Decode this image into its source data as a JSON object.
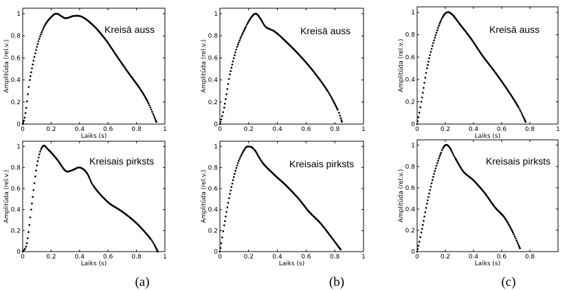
{
  "chart_data": [
    {
      "type": "scatter",
      "annotation": "Kreisā auss",
      "xlabel": "Laiks (s)",
      "ylabel": "Amplitūda (rel.v.)",
      "xlim": [
        0,
        1
      ],
      "ylim": [
        0,
        1.05
      ],
      "xticks": [
        "0",
        "0.2",
        "0.4",
        "0.6",
        "0.8",
        "1"
      ],
      "yticks": [
        "0",
        "0.2",
        "0.4",
        "0.6",
        "0.8",
        "1"
      ],
      "curve": [
        [
          0,
          0
        ],
        [
          0.02,
          0.1
        ],
        [
          0.05,
          0.4
        ],
        [
          0.1,
          0.7
        ],
        [
          0.15,
          0.88
        ],
        [
          0.2,
          0.97
        ],
        [
          0.24,
          1.0
        ],
        [
          0.3,
          0.96
        ],
        [
          0.36,
          0.98
        ],
        [
          0.42,
          0.97
        ],
        [
          0.5,
          0.89
        ],
        [
          0.58,
          0.77
        ],
        [
          0.66,
          0.62
        ],
        [
          0.74,
          0.47
        ],
        [
          0.82,
          0.33
        ],
        [
          0.88,
          0.2
        ],
        [
          0.94,
          0.02
        ]
      ]
    },
    {
      "type": "scatter",
      "annotation": "Kreisā auss",
      "xlabel": "",
      "ylabel": "Amplitūda (rel.v.)",
      "xlim": [
        0,
        1
      ],
      "ylim": [
        0,
        1.05
      ],
      "xticks": [
        "0",
        "0.2",
        "0.4",
        "0.6",
        "0.8",
        "1"
      ],
      "yticks": [
        "0",
        "0.2",
        "0.4",
        "0.6",
        "0.8",
        "1"
      ],
      "curve": [
        [
          0,
          0
        ],
        [
          0.03,
          0.15
        ],
        [
          0.07,
          0.45
        ],
        [
          0.12,
          0.7
        ],
        [
          0.18,
          0.88
        ],
        [
          0.22,
          0.97
        ],
        [
          0.25,
          1.0
        ],
        [
          0.28,
          0.96
        ],
        [
          0.32,
          0.88
        ],
        [
          0.38,
          0.84
        ],
        [
          0.45,
          0.76
        ],
        [
          0.55,
          0.63
        ],
        [
          0.65,
          0.48
        ],
        [
          0.75,
          0.3
        ],
        [
          0.82,
          0.13
        ],
        [
          0.85,
          0.02
        ]
      ]
    },
    {
      "type": "scatter",
      "annotation": "Kreisā auss",
      "xlabel": "Laiks (s)",
      "ylabel": "Amplitūda (rel.v.)",
      "xlim": [
        0,
        1
      ],
      "ylim": [
        0,
        1.05
      ],
      "xticks": [
        "0",
        "0.2",
        "0.4",
        "0.6",
        "0.8",
        "1"
      ],
      "yticks": [
        "0",
        "0.2",
        "0.4",
        "0.6",
        "0.8",
        "1"
      ],
      "curve": [
        [
          0,
          0
        ],
        [
          0.03,
          0.2
        ],
        [
          0.07,
          0.5
        ],
        [
          0.12,
          0.75
        ],
        [
          0.17,
          0.93
        ],
        [
          0.21,
          1.0
        ],
        [
          0.25,
          0.98
        ],
        [
          0.3,
          0.9
        ],
        [
          0.38,
          0.77
        ],
        [
          0.46,
          0.62
        ],
        [
          0.55,
          0.47
        ],
        [
          0.64,
          0.31
        ],
        [
          0.72,
          0.15
        ],
        [
          0.77,
          0.02
        ]
      ]
    },
    {
      "type": "scatter",
      "annotation": "Kreisais pirksts",
      "xlabel": "Laiks (s)",
      "ylabel": "Amplitūda (rel.v.)",
      "xlim": [
        0,
        1
      ],
      "ylim": [
        0,
        1.05
      ],
      "xticks": [
        "0",
        "0.2",
        "0.4",
        "0.6",
        "0.8",
        "1"
      ],
      "yticks": [
        "0",
        "0.2",
        "0.4",
        "0.6",
        "0.8",
        "1"
      ],
      "curve": [
        [
          0,
          0
        ],
        [
          0.03,
          0.08
        ],
        [
          0.06,
          0.4
        ],
        [
          0.1,
          0.82
        ],
        [
          0.14,
          1.0
        ],
        [
          0.18,
          0.97
        ],
        [
          0.24,
          0.88
        ],
        [
          0.3,
          0.77
        ],
        [
          0.34,
          0.77
        ],
        [
          0.4,
          0.8
        ],
        [
          0.45,
          0.75
        ],
        [
          0.5,
          0.62
        ],
        [
          0.6,
          0.47
        ],
        [
          0.7,
          0.38
        ],
        [
          0.8,
          0.27
        ],
        [
          0.9,
          0.12
        ],
        [
          0.95,
          0.0
        ]
      ]
    },
    {
      "type": "scatter",
      "annotation": "Kreisais pirksts",
      "xlabel": "Laiks (s)",
      "ylabel": "Amplitūda (rel.v.)",
      "xlim": [
        0,
        1
      ],
      "ylim": [
        0,
        1.05
      ],
      "xticks": [
        "0",
        "0.2",
        "0.4",
        "0.6",
        "0.8",
        "1"
      ],
      "yticks": [
        "0",
        "0.2",
        "0.4",
        "0.6",
        "0.8",
        "1"
      ],
      "curve": [
        [
          0,
          0
        ],
        [
          0.03,
          0.25
        ],
        [
          0.07,
          0.55
        ],
        [
          0.12,
          0.82
        ],
        [
          0.17,
          0.97
        ],
        [
          0.2,
          1.0
        ],
        [
          0.24,
          0.97
        ],
        [
          0.3,
          0.84
        ],
        [
          0.38,
          0.73
        ],
        [
          0.46,
          0.63
        ],
        [
          0.55,
          0.5
        ],
        [
          0.62,
          0.38
        ],
        [
          0.7,
          0.27
        ],
        [
          0.78,
          0.13
        ],
        [
          0.84,
          0.02
        ]
      ]
    },
    {
      "type": "scatter",
      "annotation": "Kreisais pirksts",
      "xlabel": "Laiks (s)",
      "ylabel": "Amplitūda (rel.v.)",
      "xlim": [
        0,
        1
      ],
      "ylim": [
        0,
        1.05
      ],
      "xticks": [
        "0",
        "0.2",
        "0.4",
        "0.6",
        "0.8"
      ],
      "yticks": [
        "0",
        "0.2",
        "0.4",
        "0.6",
        "0.8",
        "1"
      ],
      "curve": [
        [
          0,
          0
        ],
        [
          0.03,
          0.18
        ],
        [
          0.07,
          0.45
        ],
        [
          0.12,
          0.73
        ],
        [
          0.17,
          0.93
        ],
        [
          0.2,
          1.0
        ],
        [
          0.23,
          0.98
        ],
        [
          0.27,
          0.88
        ],
        [
          0.33,
          0.75
        ],
        [
          0.4,
          0.67
        ],
        [
          0.48,
          0.55
        ],
        [
          0.55,
          0.42
        ],
        [
          0.62,
          0.32
        ],
        [
          0.68,
          0.18
        ],
        [
          0.73,
          0.03
        ]
      ]
    }
  ],
  "panel_labels": [
    "(a)",
    "(b)",
    "(c)"
  ]
}
